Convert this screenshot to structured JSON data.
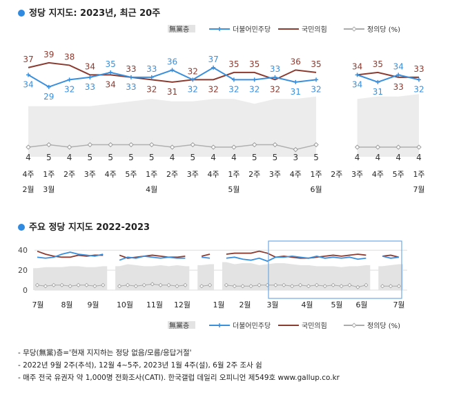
{
  "chart_data": [
    {
      "type": "line",
      "title": "정당 지지도: 2023년, 최근 20주",
      "legend": [
        "無黨층",
        "더불어민주당",
        "국민의힘",
        "정의당 (%)"
      ],
      "week_labels": [
        "4주",
        "1주",
        "2주",
        "3주",
        "4주",
        "5주",
        "1주",
        "2주",
        "3주",
        "4주",
        "1주",
        "2주",
        "3주",
        "4주",
        "1주",
        "2주",
        "3주",
        "4주",
        "5주",
        "1주"
      ],
      "month_labels": [
        {
          "index": 0,
          "text": "2월"
        },
        {
          "index": 1,
          "text": "3월"
        },
        {
          "index": 6,
          "text": "4월"
        },
        {
          "index": 10,
          "text": "5월"
        },
        {
          "index": 14,
          "text": "6월"
        },
        {
          "index": 19,
          "text": "7월"
        }
      ],
      "series": [
        {
          "name": "더불어민주당",
          "color": "#3a8fdd",
          "values": [
            34,
            29,
            32,
            33,
            35,
            33,
            33,
            36,
            32,
            37,
            32,
            32,
            33,
            31,
            32,
            null,
            34,
            31,
            34,
            32
          ]
        },
        {
          "name": "국민의힘",
          "color": "#8b3a2f",
          "values": [
            37,
            39,
            38,
            34,
            34,
            33,
            32,
            31,
            32,
            32,
            35,
            35,
            32,
            36,
            35,
            null,
            34,
            35,
            33,
            33
          ]
        },
        {
          "name": "정의당",
          "color": "#999999",
          "values": [
            4,
            5,
            4,
            5,
            5,
            5,
            5,
            4,
            5,
            4,
            4,
            5,
            5,
            3,
            5,
            null,
            4,
            4,
            4,
            4
          ]
        },
        {
          "name": "無黨층",
          "color": "#e8e8e8",
          "values": [
            21,
            21,
            21,
            21,
            22,
            23,
            24,
            23,
            23,
            24,
            24,
            22,
            24,
            24,
            25,
            null,
            24,
            25,
            25,
            26
          ]
        }
      ],
      "ylim": [
        0,
        45
      ]
    },
    {
      "type": "line",
      "title": "주요 정당 지지도 2022-2023",
      "y_ticks": [
        "0",
        "20",
        "40"
      ],
      "month_labels": [
        "7월",
        "8월",
        "9월",
        "10월",
        "11월",
        "12월",
        "1월",
        "2월",
        "3월",
        "4월",
        "5월",
        "6월",
        "7월"
      ],
      "legend": [
        "無黨층",
        "더불어민주당",
        "국민의힘",
        "정의당 (%)"
      ],
      "series": [
        {
          "name": "더불어민주당",
          "values": [
            33,
            32,
            33,
            36,
            38,
            36,
            35,
            34,
            36,
            null,
            30,
            33,
            32,
            34,
            33,
            32,
            33,
            32,
            32,
            null,
            33,
            32,
            null,
            32,
            33,
            31,
            30,
            32,
            29,
            33,
            33,
            34,
            33,
            32,
            34,
            32,
            33,
            32,
            33,
            31,
            32,
            null,
            34,
            32,
            33
          ]
        },
        {
          "name": "국민의힘",
          "values": [
            39,
            36,
            34,
            33,
            33,
            35,
            34,
            35,
            35,
            null,
            35,
            32,
            33,
            34,
            35,
            34,
            33,
            33,
            34,
            null,
            34,
            36,
            null,
            36,
            37,
            37,
            37,
            39,
            37,
            33,
            34,
            33,
            32,
            32,
            33,
            34,
            35,
            34,
            35,
            36,
            35,
            null,
            34,
            35,
            33
          ]
        },
        {
          "name": "정의당",
          "values": [
            5,
            4,
            5,
            5,
            4,
            5,
            5,
            4,
            5,
            null,
            4,
            5,
            4,
            5,
            6,
            5,
            5,
            4,
            5,
            null,
            4,
            5,
            null,
            5,
            4,
            4,
            4,
            5,
            5,
            5,
            5,
            4,
            5,
            4,
            5,
            4,
            5,
            4,
            5,
            3,
            5,
            null,
            4,
            4,
            4
          ]
        },
        {
          "name": "無黨층",
          "values": [
            22,
            23,
            23,
            23,
            24,
            24,
            23,
            23,
            24,
            null,
            24,
            26,
            25,
            24,
            24,
            25,
            24,
            25,
            24,
            null,
            25,
            26,
            null,
            28,
            26,
            27,
            27,
            25,
            26,
            27,
            27,
            26,
            25,
            25,
            24,
            24,
            24,
            23,
            24,
            24,
            25,
            null,
            24,
            25,
            26
          ]
        }
      ],
      "ylim": [
        0,
        45
      ]
    }
  ],
  "notes": [
    "- 무당(無黨)층='현재 지지하는 정당 없음/모름/응답거절'",
    "- 2022년 9월 2주(추석), 12월 4~5주, 2023년 1월 4주(설), 6월 2주 조사 쉼",
    "- 매주 전국 유권자 약 1,000명 전화조사(CATI). 한국갤럽 데일리 오피니언 제549호 www.gallup.co.kr"
  ]
}
